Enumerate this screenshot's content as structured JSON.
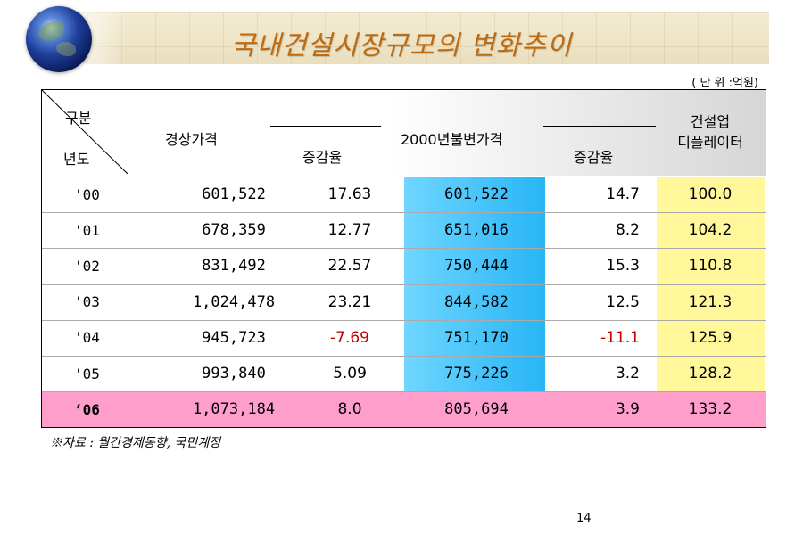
{
  "title": "국내건설시장규모의 변화추이",
  "unit": "( 단 위 :억원)",
  "headers": {
    "category": "구분",
    "year": "년도",
    "current_price": "경상가격",
    "rate1": "증감율",
    "constant_price": "2000년불변가격",
    "rate2": "증감율",
    "deflator": "건설업\n디플레이터"
  },
  "rows": [
    {
      "year": "'00",
      "current": "601,522",
      "rate1": "17.63",
      "constant": "601,522",
      "rate2": "14.7",
      "deflator": "100.0"
    },
    {
      "year": "'01",
      "current": "678,359",
      "rate1": "12.77",
      "constant": "651,016",
      "rate2": "8.2",
      "deflator": "104.2"
    },
    {
      "year": "'02",
      "current": "831,492",
      "rate1": "22.57",
      "constant": "750,444",
      "rate2": "15.3",
      "deflator": "110.8"
    },
    {
      "year": "'03",
      "current": "1,024,478",
      "rate1": "23.21",
      "constant": "844,582",
      "rate2": "12.5",
      "deflator": "121.3"
    },
    {
      "year": "'04",
      "current": "945,723",
      "rate1": "-7.69",
      "constant": "751,170",
      "rate2": "-11.1",
      "deflator": "125.9"
    },
    {
      "year": "'05",
      "current": "993,840",
      "rate1": "5.09",
      "constant": "775,226",
      "rate2": "3.2",
      "deflator": "128.2"
    },
    {
      "year": "‘06",
      "current": "1,073,184",
      "rate1": "8.0",
      "constant": "805,694",
      "rate2": "3.9",
      "deflator": "133.2"
    }
  ],
  "source": "※자료 : 월간경제동향, 국민계정",
  "page_number": "14",
  "colors": {
    "title": "#c06a10",
    "cyan": "#28b5f5",
    "yellow": "#fff79a",
    "pink": "#ff9ecb",
    "negative": "#c20000"
  }
}
